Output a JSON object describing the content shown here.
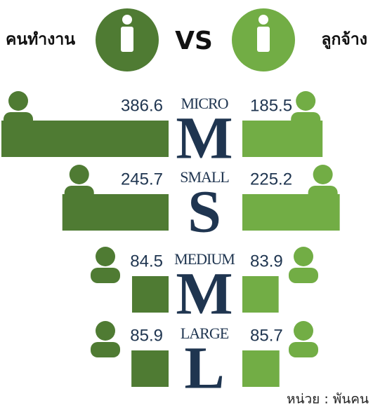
{
  "chart_data": {
    "type": "butterfly",
    "vs_label": "VS",
    "categories": [
      "MICRO",
      "SMALL",
      "MEDIUM",
      "LARGE"
    ],
    "category_letters": [
      "M",
      "S",
      "M",
      "L"
    ],
    "series": [
      {
        "name": "คนทำงาน",
        "color": "#4f7b33",
        "values": [
          386.6,
          245.7,
          84.5,
          85.9
        ]
      },
      {
        "name": "ลูกจ้าง",
        "color": "#72ad45",
        "values": [
          185.5,
          225.2,
          83.9,
          85.7
        ]
      }
    ],
    "unit_note": "หน่วย : พันคน"
  }
}
